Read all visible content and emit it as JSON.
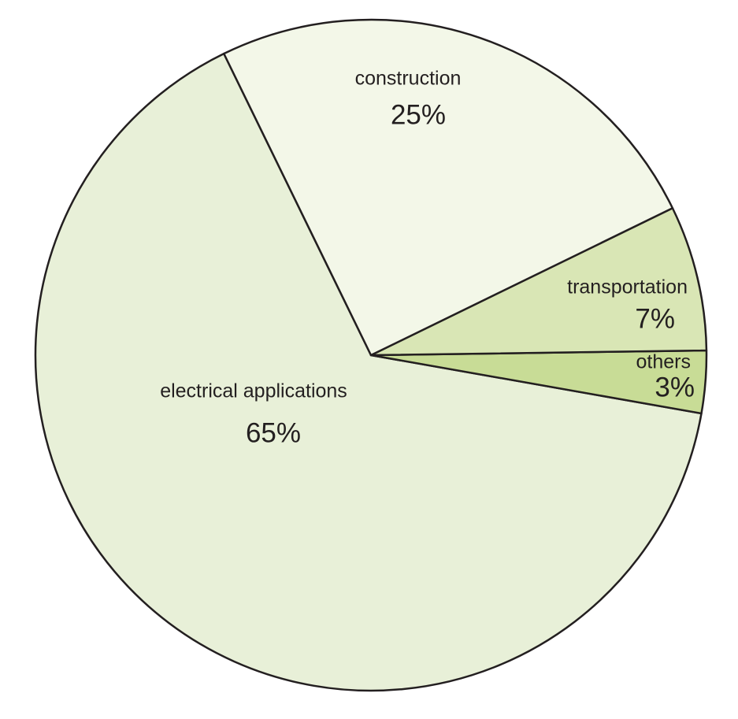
{
  "chart_data": {
    "type": "pie",
    "categories": [
      "electrical applications",
      "others",
      "transportation",
      "construction"
    ],
    "values": [
      65,
      3,
      7,
      25
    ],
    "value_labels": [
      "65%",
      "3%",
      "7%",
      "25%"
    ],
    "colors": [
      "#e8f0d8",
      "#c8dc96",
      "#d9e6b5",
      "#f3f7e8"
    ]
  }
}
